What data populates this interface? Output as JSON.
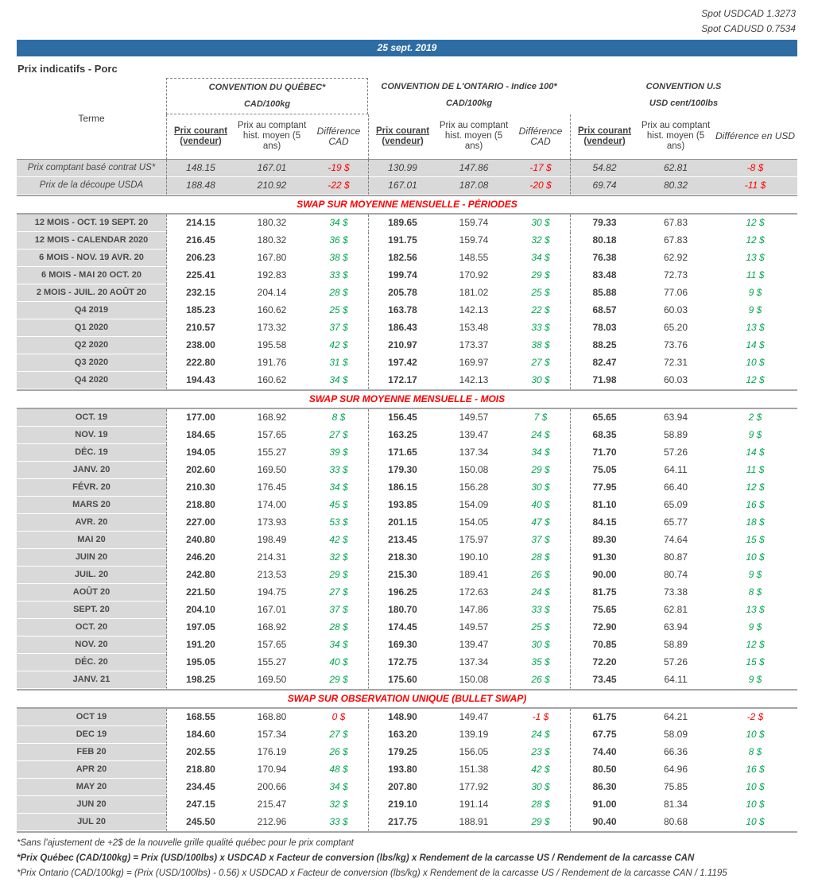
{
  "meta": {
    "spot_usdcad": "Spot USDCAD 1.3273",
    "spot_cadusd": "Spot CADUSD 0.7534",
    "date": "25 sept. 2019",
    "title": "Prix indicatifs - Porc"
  },
  "colors": {
    "banner_blue": "#2e6da4",
    "positive_green": "#00a651",
    "negative_red": "#ff0000",
    "section_red": "#ff0000",
    "terme_gray": "#d9d9d9"
  },
  "header": {
    "terme": "Terme",
    "groups": [
      {
        "title": "CONVENTION DU QUÉBEC*",
        "unit": "CAD/100kg",
        "col_courant": "Prix courant (vendeur)",
        "col_comptant": "Prix au comptant hist. moyen (5 ans)",
        "col_diff": "Différence CAD"
      },
      {
        "title": "CONVENTION DE L'ONTARIO - Indice 100*",
        "unit": "CAD/100kg",
        "col_courant": "Prix courant (vendeur)",
        "col_comptant": "Prix au comptant hist. moyen (5 ans)",
        "col_diff": "Différence CAD"
      },
      {
        "title": "CONVENTION U.S",
        "unit": "USD cent/100lbs",
        "col_courant": "Prix courant (vendeur)",
        "col_comptant": "Prix au comptant hist. moyen (5 ans)",
        "col_diff": "Différence en USD"
      }
    ]
  },
  "spot_rows": [
    {
      "terme": "Prix comptant basé contrat US*",
      "values": [
        "148.15",
        "167.01",
        "-19 $",
        "130.99",
        "147.86",
        "-17 $",
        "54.82",
        "62.81",
        "-8 $"
      ]
    },
    {
      "terme": "Prix de la découpe USDA",
      "values": [
        "188.48",
        "210.92",
        "-22 $",
        "167.01",
        "187.08",
        "-20 $",
        "69.74",
        "80.32",
        "-11 $"
      ]
    }
  ],
  "sections": [
    {
      "title": "SWAP SUR MOYENNE MENSUELLE - PÉRIODES",
      "rows": [
        {
          "terme": "12 MOIS -  OCT. 19 SEPT. 20",
          "values": [
            "214.15",
            "180.32",
            "34 $",
            "189.65",
            "159.74",
            "30 $",
            "79.33",
            "67.83",
            "12 $"
          ]
        },
        {
          "terme": "12 MOIS - CALENDAR 2020",
          "values": [
            "216.45",
            "180.32",
            "36 $",
            "191.75",
            "159.74",
            "32 $",
            "80.18",
            "67.83",
            "12 $"
          ]
        },
        {
          "terme": "6 MOIS -  NOV. 19 AVR. 20",
          "values": [
            "206.23",
            "167.80",
            "38 $",
            "182.56",
            "148.55",
            "34 $",
            "76.38",
            "62.92",
            "13 $"
          ]
        },
        {
          "terme": "6 MOIS -  MAI 20 OCT. 20",
          "values": [
            "225.41",
            "192.83",
            "33 $",
            "199.74",
            "170.92",
            "29 $",
            "83.48",
            "72.73",
            "11 $"
          ]
        },
        {
          "terme": "2 MOIS -  JUIL. 20  AOÛT 20",
          "values": [
            "232.15",
            "204.14",
            "28 $",
            "205.78",
            "181.02",
            "25 $",
            "85.88",
            "77.06",
            "9 $"
          ]
        },
        {
          "terme": "Q4 2019",
          "values": [
            "185.23",
            "160.62",
            "25 $",
            "163.78",
            "142.13",
            "22 $",
            "68.57",
            "60.03",
            "9 $"
          ]
        },
        {
          "terme": "Q1 2020",
          "values": [
            "210.57",
            "173.32",
            "37 $",
            "186.43",
            "153.48",
            "33 $",
            "78.03",
            "65.20",
            "13 $"
          ]
        },
        {
          "terme": "Q2 2020",
          "values": [
            "238.00",
            "195.58",
            "42 $",
            "210.97",
            "173.37",
            "38 $",
            "88.25",
            "73.76",
            "14 $"
          ]
        },
        {
          "terme": "Q3 2020",
          "values": [
            "222.80",
            "191.76",
            "31 $",
            "197.42",
            "169.97",
            "27 $",
            "82.47",
            "72.31",
            "10 $"
          ]
        },
        {
          "terme": "Q4 2020",
          "values": [
            "194.43",
            "160.62",
            "34 $",
            "172.17",
            "142.13",
            "30 $",
            "71.98",
            "60.03",
            "12 $"
          ]
        }
      ]
    },
    {
      "title": "SWAP SUR MOYENNE MENSUELLE - MOIS",
      "rows": [
        {
          "terme": "OCT. 19",
          "values": [
            "177.00",
            "168.92",
            "8 $",
            "156.45",
            "149.57",
            "7 $",
            "65.65",
            "63.94",
            "2 $"
          ]
        },
        {
          "terme": "NOV. 19",
          "values": [
            "184.65",
            "157.65",
            "27 $",
            "163.25",
            "139.47",
            "24 $",
            "68.35",
            "58.89",
            "9 $"
          ]
        },
        {
          "terme": "DÉC. 19",
          "values": [
            "194.05",
            "155.27",
            "39 $",
            "171.65",
            "137.34",
            "34 $",
            "71.70",
            "57.26",
            "14 $"
          ]
        },
        {
          "terme": "JANV. 20",
          "values": [
            "202.60",
            "169.50",
            "33 $",
            "179.30",
            "150.08",
            "29 $",
            "75.05",
            "64.11",
            "11 $"
          ]
        },
        {
          "terme": "FÉVR. 20",
          "values": [
            "210.30",
            "176.45",
            "34 $",
            "186.15",
            "156.28",
            "30 $",
            "77.95",
            "66.40",
            "12 $"
          ]
        },
        {
          "terme": "MARS 20",
          "values": [
            "218.80",
            "174.00",
            "45 $",
            "193.85",
            "154.09",
            "40 $",
            "81.10",
            "65.09",
            "16 $"
          ]
        },
        {
          "terme": "AVR. 20",
          "values": [
            "227.00",
            "173.93",
            "53 $",
            "201.15",
            "154.05",
            "47 $",
            "84.15",
            "65.77",
            "18 $"
          ]
        },
        {
          "terme": "MAI 20",
          "values": [
            "240.80",
            "198.49",
            "42 $",
            "213.45",
            "175.97",
            "37 $",
            "89.30",
            "74.64",
            "15 $"
          ]
        },
        {
          "terme": "JUIN 20",
          "values": [
            "246.20",
            "214.31",
            "32 $",
            "218.30",
            "190.10",
            "28 $",
            "91.30",
            "80.87",
            "10 $"
          ]
        },
        {
          "terme": "JUIL. 20",
          "values": [
            "242.80",
            "213.53",
            "29 $",
            "215.30",
            "189.41",
            "26 $",
            "90.00",
            "80.74",
            "9 $"
          ]
        },
        {
          "terme": "AOÛT 20",
          "values": [
            "221.50",
            "194.75",
            "27 $",
            "196.25",
            "172.63",
            "24 $",
            "81.75",
            "73.38",
            "8 $"
          ]
        },
        {
          "terme": "SEPT. 20",
          "values": [
            "204.10",
            "167.01",
            "37 $",
            "180.70",
            "147.86",
            "33 $",
            "75.65",
            "62.81",
            "13 $"
          ]
        },
        {
          "terme": "OCT. 20",
          "values": [
            "197.05",
            "168.92",
            "28 $",
            "174.45",
            "149.57",
            "25 $",
            "72.90",
            "63.94",
            "9 $"
          ]
        },
        {
          "terme": "NOV. 20",
          "values": [
            "191.20",
            "157.65",
            "34 $",
            "169.30",
            "139.47",
            "30 $",
            "70.85",
            "58.89",
            "12 $"
          ]
        },
        {
          "terme": "DÉC. 20",
          "values": [
            "195.05",
            "155.27",
            "40 $",
            "172.75",
            "137.34",
            "35 $",
            "72.20",
            "57.26",
            "15 $"
          ]
        },
        {
          "terme": "JANV. 21",
          "values": [
            "198.25",
            "169.50",
            "29 $",
            "175.60",
            "150.08",
            "26 $",
            "73.45",
            "64.11",
            "9 $"
          ]
        }
      ]
    },
    {
      "title": "SWAP SUR OBSERVATION UNIQUE (BULLET SWAP)",
      "rows": [
        {
          "terme": "OCT 19",
          "values": [
            "168.55",
            "168.80",
            "0 $",
            "148.90",
            "149.47",
            "-1 $",
            "61.75",
            "64.21",
            "-2 $"
          ]
        },
        {
          "terme": "DEC 19",
          "values": [
            "184.60",
            "157.34",
            "27 $",
            "163.20",
            "139.19",
            "24 $",
            "67.75",
            "58.09",
            "10 $"
          ]
        },
        {
          "terme": "FEB 20",
          "values": [
            "202.55",
            "176.19",
            "26 $",
            "179.25",
            "156.05",
            "23 $",
            "74.40",
            "66.36",
            "8 $"
          ]
        },
        {
          "terme": "APR 20",
          "values": [
            "218.80",
            "170.94",
            "48 $",
            "193.80",
            "151.38",
            "42 $",
            "80.50",
            "64.96",
            "16 $"
          ]
        },
        {
          "terme": "MAY 20",
          "values": [
            "234.45",
            "200.66",
            "34 $",
            "207.80",
            "177.92",
            "30 $",
            "86.30",
            "75.85",
            "10 $"
          ]
        },
        {
          "terme": "JUN 20",
          "values": [
            "247.15",
            "215.47",
            "32 $",
            "219.10",
            "191.14",
            "28 $",
            "91.00",
            "81.34",
            "10 $"
          ]
        },
        {
          "terme": "JUL 20",
          "values": [
            "245.50",
            "212.96",
            "33 $",
            "217.75",
            "188.91",
            "29 $",
            "90.40",
            "80.68",
            "10 $"
          ]
        }
      ]
    }
  ],
  "footnotes": [
    "*Sans l'ajustement de +2$ de la nouvelle grille qualité québec pour le prix comptant",
    "*Prix Québec (CAD/100kg) = Prix (USD/100lbs) x USDCAD x Facteur de conversion (lbs/kg) x Rendement de la carcasse US / Rendement de la carcasse CAN",
    "*Prix Ontario (CAD/100kg) = (Prix (USD/100lbs) - 0.56) x USDCAD x Facteur de conversion (lbs/kg) x Rendement de la carcasse US / Rendement de la carcasse CAN / 1.1195"
  ]
}
